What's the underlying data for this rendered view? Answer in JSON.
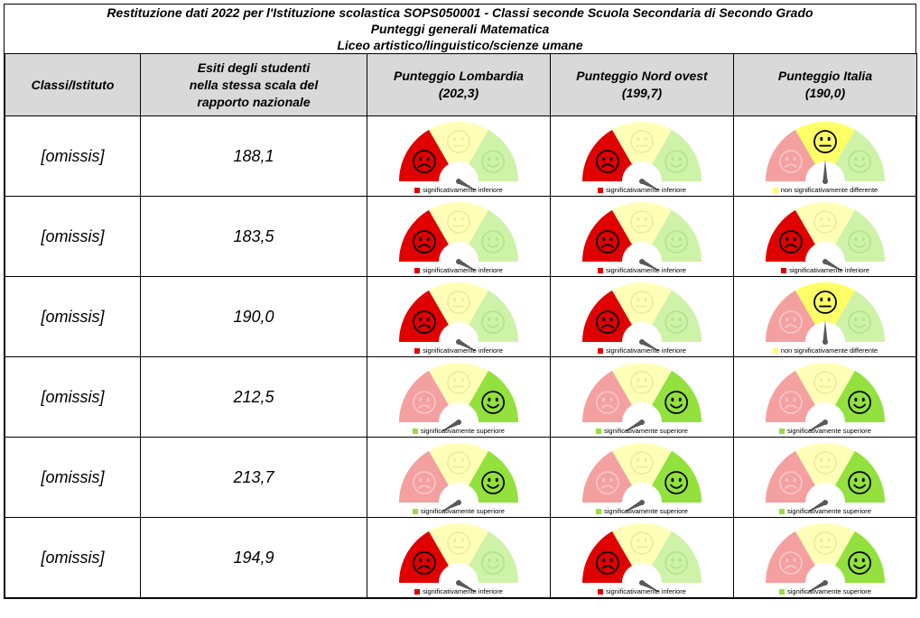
{
  "title": {
    "line1": "Restituzione dati 2022 per l'Istituzione scolastica SOPS050001 - Classi seconde Scuola Secondaria di Secondo Grado",
    "line2": "Punteggi generali Matematica",
    "line3": "Liceo artistico/linguistico/scienze umane"
  },
  "headers": {
    "col1": "Classi/Istituto",
    "col2_l1": "Esiti degli studenti",
    "col2_l2": "nella stessa scala del",
    "col2_l3": "rapporto nazionale",
    "col3_l1": "Punteggio Lombardia",
    "col3_l2": "(202,3)",
    "col4_l1": "Punteggio Nord ovest",
    "col4_l2": "(199,7)",
    "col5_l1": "Punteggio Italia",
    "col5_l2": "(190,0)"
  },
  "legend_labels": {
    "inferiore": "significativamente inferiore",
    "non_diff": "non significativamente differente",
    "superiore": "significativamente superiore"
  },
  "colors": {
    "red": "#e00000",
    "red_faded": "#f4a0a0",
    "yellow": "#ffff66",
    "yellow_faded": "#ffffb8",
    "green": "#92e13c",
    "green_faded": "#cdf2a8",
    "needle": "#595959",
    "header_bg": "#d9d9d9"
  },
  "rows": [
    {
      "label": "[omissis]",
      "score": "188,1",
      "lombardia": "inferiore",
      "nord_ovest": "inferiore",
      "italia": "non_diff"
    },
    {
      "label": "[omissis]",
      "score": "183,5",
      "lombardia": "inferiore",
      "nord_ovest": "inferiore",
      "italia": "inferiore"
    },
    {
      "label": "[omissis]",
      "score": "190,0",
      "lombardia": "inferiore",
      "nord_ovest": "inferiore",
      "italia": "non_diff"
    },
    {
      "label": "[omissis]",
      "score": "212,5",
      "lombardia": "superiore",
      "nord_ovest": "superiore",
      "italia": "superiore"
    },
    {
      "label": "[omissis]",
      "score": "213,7",
      "lombardia": "superiore",
      "nord_ovest": "superiore",
      "italia": "superiore"
    },
    {
      "label": "[omissis]",
      "score": "194,9",
      "lombardia": "inferiore",
      "nord_ovest": "inferiore",
      "italia": "superiore"
    }
  ]
}
